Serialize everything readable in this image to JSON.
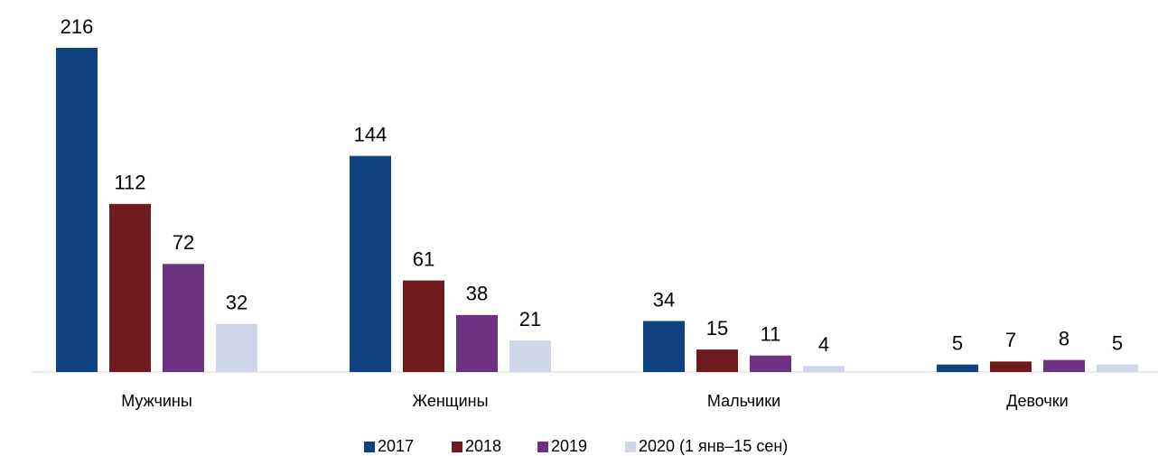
{
  "chart_data": {
    "type": "bar",
    "categories": [
      "Мужчины",
      "Женщины",
      "Мальчики",
      "Девочки"
    ],
    "series": [
      {
        "name": "2017",
        "color": "#0f4280",
        "values": [
          216,
          144,
          34,
          5
        ]
      },
      {
        "name": "2018",
        "color": "#6e1a1e",
        "values": [
          112,
          61,
          15,
          7
        ]
      },
      {
        "name": "2019",
        "color": "#6c3380",
        "values": [
          72,
          38,
          11,
          8
        ]
      },
      {
        "name": "2020 (1 янв–15 сен)",
        "color": "#d0d6ea",
        "values": [
          32,
          21,
          4,
          5
        ]
      }
    ],
    "legend": "bottom"
  }
}
